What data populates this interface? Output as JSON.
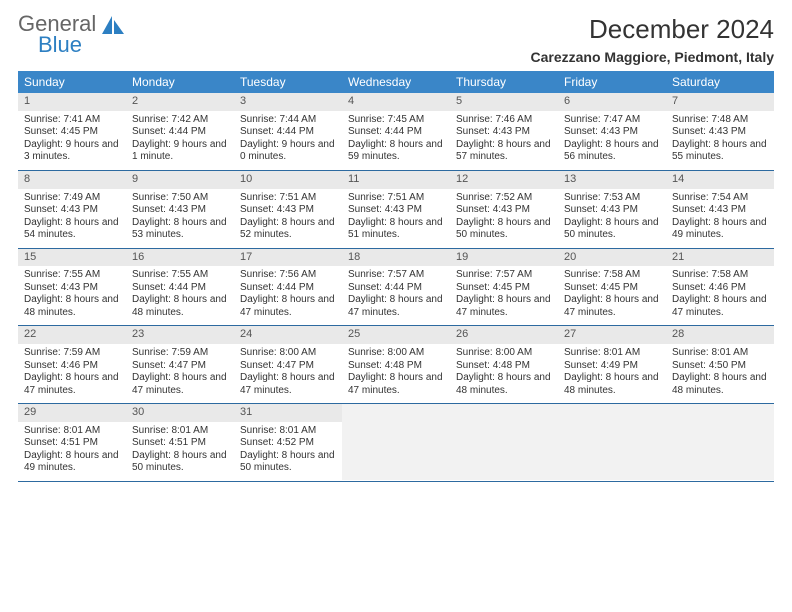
{
  "logo": {
    "word1": "General",
    "word2": "Blue"
  },
  "title": "December 2024",
  "location": "Carezzano Maggiore, Piedmont, Italy",
  "colors": {
    "header_bg": "#3a86c8",
    "daynum_bg": "#e9e9e9",
    "week_border": "#2d6aa0",
    "logo_accent": "#2d7fc2"
  },
  "weekdays": [
    "Sunday",
    "Monday",
    "Tuesday",
    "Wednesday",
    "Thursday",
    "Friday",
    "Saturday"
  ],
  "weeks": [
    [
      {
        "n": "1",
        "sr": "Sunrise: 7:41 AM",
        "ss": "Sunset: 4:45 PM",
        "dl": "Daylight: 9 hours and 3 minutes."
      },
      {
        "n": "2",
        "sr": "Sunrise: 7:42 AM",
        "ss": "Sunset: 4:44 PM",
        "dl": "Daylight: 9 hours and 1 minute."
      },
      {
        "n": "3",
        "sr": "Sunrise: 7:44 AM",
        "ss": "Sunset: 4:44 PM",
        "dl": "Daylight: 9 hours and 0 minutes."
      },
      {
        "n": "4",
        "sr": "Sunrise: 7:45 AM",
        "ss": "Sunset: 4:44 PM",
        "dl": "Daylight: 8 hours and 59 minutes."
      },
      {
        "n": "5",
        "sr": "Sunrise: 7:46 AM",
        "ss": "Sunset: 4:43 PM",
        "dl": "Daylight: 8 hours and 57 minutes."
      },
      {
        "n": "6",
        "sr": "Sunrise: 7:47 AM",
        "ss": "Sunset: 4:43 PM",
        "dl": "Daylight: 8 hours and 56 minutes."
      },
      {
        "n": "7",
        "sr": "Sunrise: 7:48 AM",
        "ss": "Sunset: 4:43 PM",
        "dl": "Daylight: 8 hours and 55 minutes."
      }
    ],
    [
      {
        "n": "8",
        "sr": "Sunrise: 7:49 AM",
        "ss": "Sunset: 4:43 PM",
        "dl": "Daylight: 8 hours and 54 minutes."
      },
      {
        "n": "9",
        "sr": "Sunrise: 7:50 AM",
        "ss": "Sunset: 4:43 PM",
        "dl": "Daylight: 8 hours and 53 minutes."
      },
      {
        "n": "10",
        "sr": "Sunrise: 7:51 AM",
        "ss": "Sunset: 4:43 PM",
        "dl": "Daylight: 8 hours and 52 minutes."
      },
      {
        "n": "11",
        "sr": "Sunrise: 7:51 AM",
        "ss": "Sunset: 4:43 PM",
        "dl": "Daylight: 8 hours and 51 minutes."
      },
      {
        "n": "12",
        "sr": "Sunrise: 7:52 AM",
        "ss": "Sunset: 4:43 PM",
        "dl": "Daylight: 8 hours and 50 minutes."
      },
      {
        "n": "13",
        "sr": "Sunrise: 7:53 AM",
        "ss": "Sunset: 4:43 PM",
        "dl": "Daylight: 8 hours and 50 minutes."
      },
      {
        "n": "14",
        "sr": "Sunrise: 7:54 AM",
        "ss": "Sunset: 4:43 PM",
        "dl": "Daylight: 8 hours and 49 minutes."
      }
    ],
    [
      {
        "n": "15",
        "sr": "Sunrise: 7:55 AM",
        "ss": "Sunset: 4:43 PM",
        "dl": "Daylight: 8 hours and 48 minutes."
      },
      {
        "n": "16",
        "sr": "Sunrise: 7:55 AM",
        "ss": "Sunset: 4:44 PM",
        "dl": "Daylight: 8 hours and 48 minutes."
      },
      {
        "n": "17",
        "sr": "Sunrise: 7:56 AM",
        "ss": "Sunset: 4:44 PM",
        "dl": "Daylight: 8 hours and 47 minutes."
      },
      {
        "n": "18",
        "sr": "Sunrise: 7:57 AM",
        "ss": "Sunset: 4:44 PM",
        "dl": "Daylight: 8 hours and 47 minutes."
      },
      {
        "n": "19",
        "sr": "Sunrise: 7:57 AM",
        "ss": "Sunset: 4:45 PM",
        "dl": "Daylight: 8 hours and 47 minutes."
      },
      {
        "n": "20",
        "sr": "Sunrise: 7:58 AM",
        "ss": "Sunset: 4:45 PM",
        "dl": "Daylight: 8 hours and 47 minutes."
      },
      {
        "n": "21",
        "sr": "Sunrise: 7:58 AM",
        "ss": "Sunset: 4:46 PM",
        "dl": "Daylight: 8 hours and 47 minutes."
      }
    ],
    [
      {
        "n": "22",
        "sr": "Sunrise: 7:59 AM",
        "ss": "Sunset: 4:46 PM",
        "dl": "Daylight: 8 hours and 47 minutes."
      },
      {
        "n": "23",
        "sr": "Sunrise: 7:59 AM",
        "ss": "Sunset: 4:47 PM",
        "dl": "Daylight: 8 hours and 47 minutes."
      },
      {
        "n": "24",
        "sr": "Sunrise: 8:00 AM",
        "ss": "Sunset: 4:47 PM",
        "dl": "Daylight: 8 hours and 47 minutes."
      },
      {
        "n": "25",
        "sr": "Sunrise: 8:00 AM",
        "ss": "Sunset: 4:48 PM",
        "dl": "Daylight: 8 hours and 47 minutes."
      },
      {
        "n": "26",
        "sr": "Sunrise: 8:00 AM",
        "ss": "Sunset: 4:48 PM",
        "dl": "Daylight: 8 hours and 48 minutes."
      },
      {
        "n": "27",
        "sr": "Sunrise: 8:01 AM",
        "ss": "Sunset: 4:49 PM",
        "dl": "Daylight: 8 hours and 48 minutes."
      },
      {
        "n": "28",
        "sr": "Sunrise: 8:01 AM",
        "ss": "Sunset: 4:50 PM",
        "dl": "Daylight: 8 hours and 48 minutes."
      }
    ],
    [
      {
        "n": "29",
        "sr": "Sunrise: 8:01 AM",
        "ss": "Sunset: 4:51 PM",
        "dl": "Daylight: 8 hours and 49 minutes."
      },
      {
        "n": "30",
        "sr": "Sunrise: 8:01 AM",
        "ss": "Sunset: 4:51 PM",
        "dl": "Daylight: 8 hours and 50 minutes."
      },
      {
        "n": "31",
        "sr": "Sunrise: 8:01 AM",
        "ss": "Sunset: 4:52 PM",
        "dl": "Daylight: 8 hours and 50 minutes."
      },
      null,
      null,
      null,
      null
    ]
  ]
}
